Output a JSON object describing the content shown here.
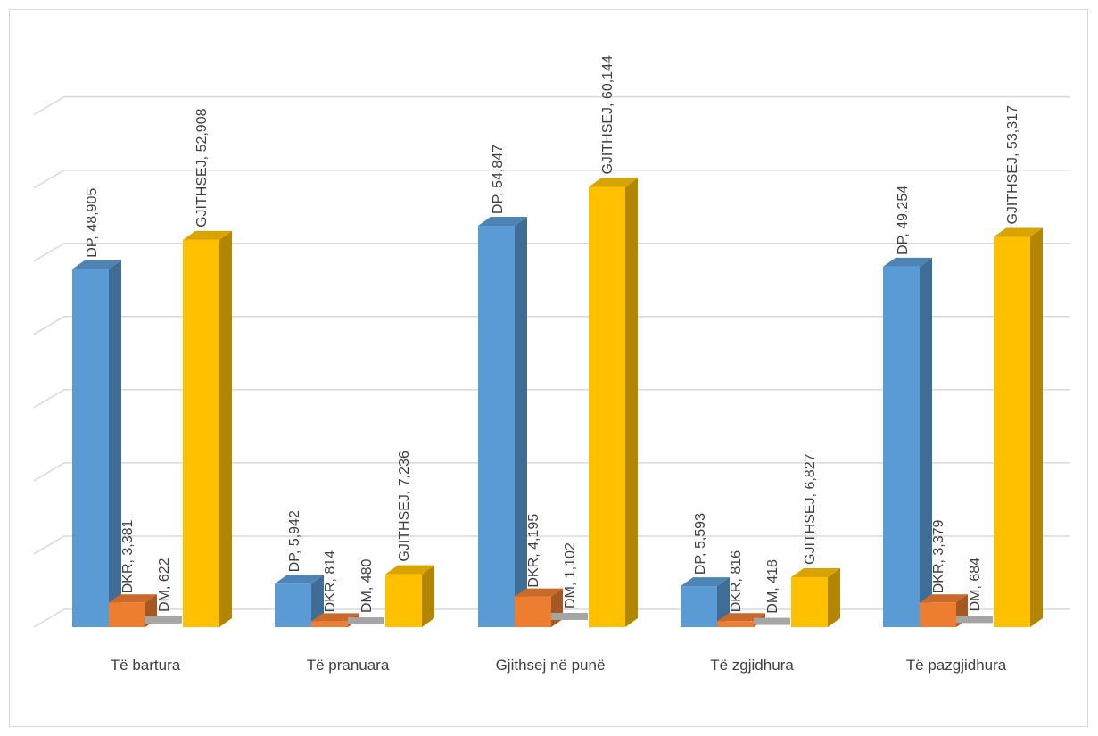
{
  "chart_data": {
    "type": "bar",
    "title": "",
    "xlabel": "",
    "ylabel": "",
    "ylim": [
      0,
      70000
    ],
    "grid": true,
    "legend": "none",
    "categories": [
      "Të bartura",
      "Të pranuara",
      "Gjithsej në punë",
      "Të zgjidhura",
      "Të pazgjidhura"
    ],
    "series": [
      {
        "name": "DP",
        "color": "#5b9bd5",
        "values": [
          48905,
          5942,
          54847,
          5593,
          49254
        ],
        "labels": [
          "48,905",
          "5,942",
          "54,847",
          "5,593",
          "49,254"
        ]
      },
      {
        "name": "DKR",
        "color": "#ed7d31",
        "values": [
          3381,
          814,
          4195,
          816,
          3379
        ],
        "labels": [
          "3,381",
          "814",
          "4,195",
          "816",
          "3,379"
        ]
      },
      {
        "name": "DM",
        "color": "#a5a5a5",
        "values": [
          622,
          480,
          1102,
          418,
          684
        ],
        "labels": [
          "622",
          "480",
          "1,102",
          "418",
          "684"
        ]
      },
      {
        "name": "GJITHSEJ",
        "color": "#ffc000",
        "values": [
          52908,
          7236,
          60144,
          6827,
          53317
        ],
        "labels": [
          "52,908",
          "7,236",
          "60,144",
          "6,827",
          "53,317"
        ]
      }
    ]
  }
}
